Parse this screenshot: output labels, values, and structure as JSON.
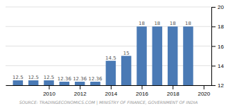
{
  "chart_data": {
    "type": "bar",
    "x": [
      2008,
      2009,
      2010,
      2011,
      2012,
      2013,
      2014,
      2015,
      2016,
      2017,
      2018,
      2019
    ],
    "values": [
      12.5,
      12.5,
      12.5,
      12.36,
      12.36,
      12.36,
      14.5,
      15,
      18,
      18,
      18,
      18
    ],
    "color": "#4a7ab5",
    "xlim": [
      2007.2,
      2020.5
    ],
    "xticks": [
      2010,
      2012,
      2014,
      2016,
      2018,
      2020
    ],
    "ylim": [
      12,
      20
    ],
    "yticks": [
      12,
      14,
      16,
      18,
      20
    ],
    "grid": true,
    "data_labels": true,
    "annotations": [
      "SOURCE: TRADINGECONOMICS.COM | MINISTRY OF FINANCE, GOVERNMENT OF INDIA"
    ]
  }
}
